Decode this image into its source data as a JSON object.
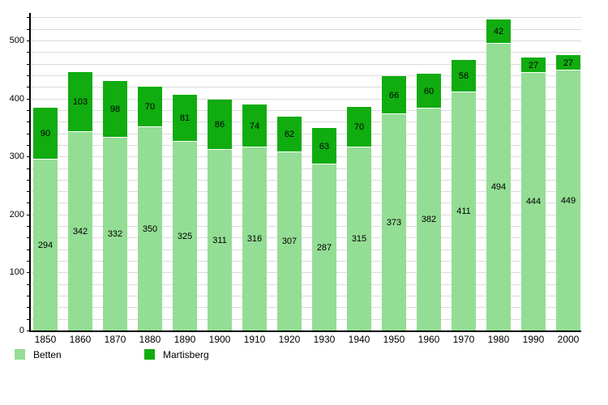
{
  "chart_data": {
    "type": "bar",
    "stacked": true,
    "title": "",
    "xlabel": "",
    "ylabel": "",
    "categories": [
      "1850",
      "1860",
      "1870",
      "1880",
      "1890",
      "1900",
      "1910",
      "1920",
      "1930",
      "1940",
      "1950",
      "1960",
      "1970",
      "1980",
      "1990",
      "2000"
    ],
    "series": [
      {
        "name": "Betten",
        "color": "#94dd94",
        "values": [
          294,
          342,
          332,
          350,
          325,
          311,
          316,
          307,
          287,
          315,
          373,
          382,
          411,
          494,
          444,
          449
        ]
      },
      {
        "name": "Martisberg",
        "color": "#10ac10",
        "values": [
          90,
          103,
          98,
          70,
          81,
          86,
          74,
          62,
          63,
          70,
          66,
          60,
          56,
          42,
          27,
          27
        ]
      }
    ],
    "ylim": [
      0,
      540
    ],
    "ytick_labels": [
      "0",
      "100",
      "200",
      "300",
      "400",
      "500"
    ],
    "ytick_label_interval": 100,
    "grid": true,
    "grid_interval": 20,
    "legend_position": "bottom-left",
    "gridline_color": "#dbdbdb",
    "axis_color": "#000000",
    "background_color": "#ffffff"
  }
}
